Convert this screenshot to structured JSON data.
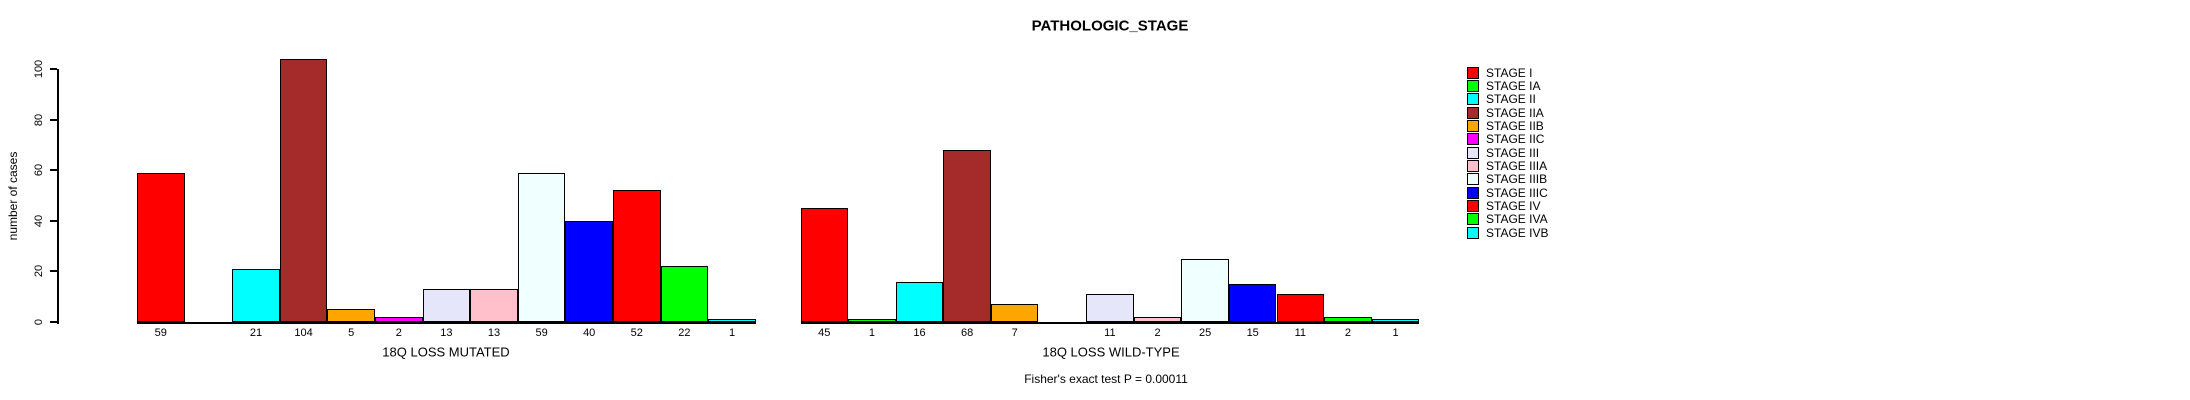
{
  "chart_data": {
    "type": "bar",
    "title": "PATHOLOGIC_STAGE",
    "ylabel": "number of cases",
    "ylim": [
      0,
      108
    ],
    "yticks": [
      0,
      20,
      40,
      60,
      80,
      100
    ],
    "grid": false,
    "legend_position": "right",
    "categories": [
      "STAGE I",
      "STAGE IA",
      "STAGE II",
      "STAGE IIA",
      "STAGE IIB",
      "STAGE IIC",
      "STAGE III",
      "STAGE IIIA",
      "STAGE IIIB",
      "STAGE IIIC",
      "STAGE IV",
      "STAGE IVA",
      "STAGE IVB"
    ],
    "colors": [
      "#FF0000",
      "#00FF00",
      "#00FFFF",
      "#A52A2A",
      "#FFA500",
      "#FF00FF",
      "#E6E6FA",
      "#FFC0CB",
      "#F0FFFF",
      "#0000FF",
      "#FF0000",
      "#00FF00",
      "#00FFFF"
    ],
    "panels": [
      {
        "xlabel": "18Q LOSS MUTATED",
        "values": [
          59,
          0,
          21,
          104,
          5,
          2,
          13,
          13,
          59,
          40,
          52,
          22,
          1
        ]
      },
      {
        "xlabel": "18Q LOSS WILD-TYPE",
        "values": [
          45,
          1,
          16,
          68,
          7,
          0,
          11,
          2,
          25,
          15,
          11,
          2,
          1
        ]
      }
    ],
    "annotation": "Fisher's exact test P = 0.00011"
  }
}
